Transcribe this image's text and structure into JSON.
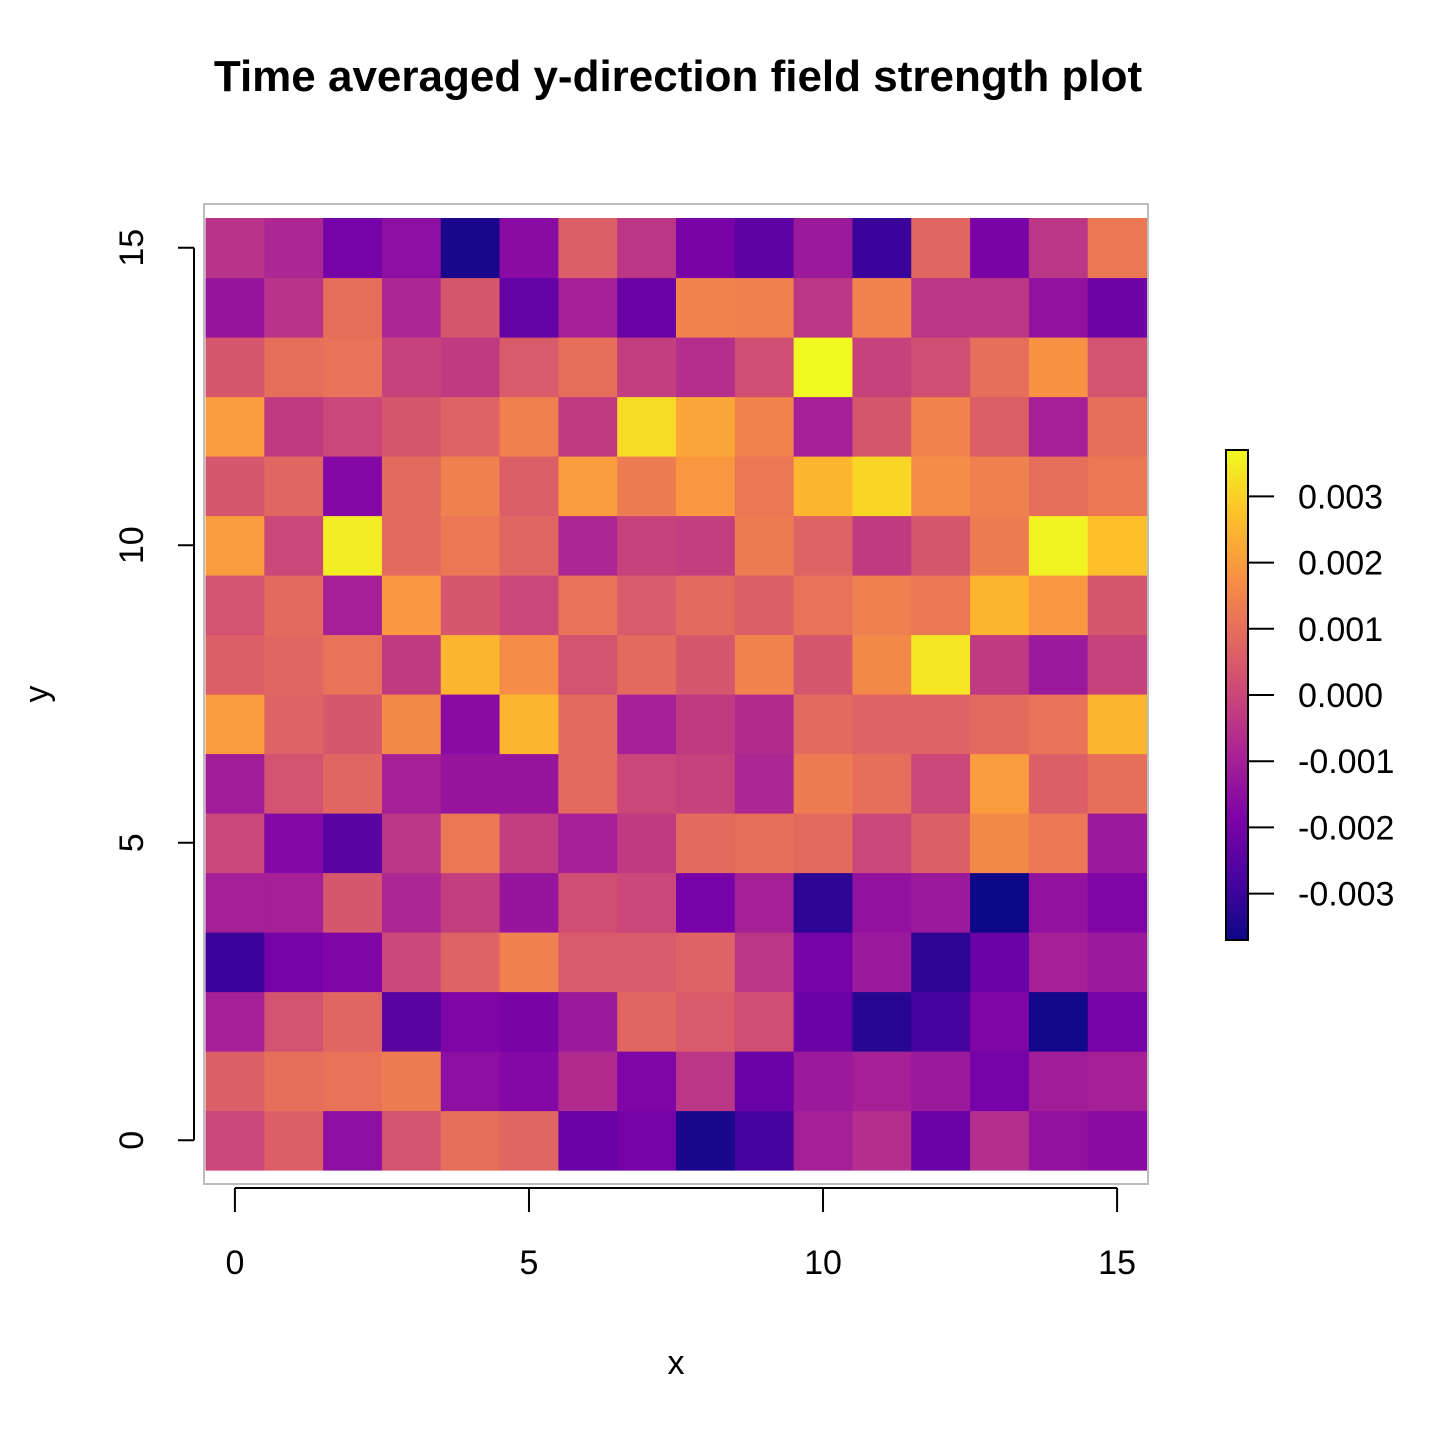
{
  "chart_data": {
    "type": "heatmap",
    "title": "Time averaged y-direction field strength plot",
    "xlabel": "x",
    "ylabel": "y",
    "x": [
      0,
      1,
      2,
      3,
      4,
      5,
      6,
      7,
      8,
      9,
      10,
      11,
      12,
      13,
      14,
      15
    ],
    "y": [
      0,
      1,
      2,
      3,
      4,
      5,
      6,
      7,
      8,
      9,
      10,
      11,
      12,
      13,
      14,
      15
    ],
    "xlim": [
      -0.5,
      15.5
    ],
    "ylim": [
      -0.5,
      15.5
    ],
    "x_ticks": [
      "0",
      "5",
      "10",
      "15"
    ],
    "y_ticks": [
      "0",
      "5",
      "10",
      "15"
    ],
    "colormap": "plasma",
    "color_range": [
      -0.0037,
      0.0037
    ],
    "colorbar_ticks": [
      "-0.003",
      "-0.002",
      "-0.001",
      "0.000",
      "0.001",
      "0.002",
      "0.003"
    ],
    "colorbar_tick_values": [
      -0.003,
      -0.002,
      -0.001,
      0.0,
      0.001,
      0.002,
      0.003
    ],
    "values_rows_from_y0": [
      [
        0.0,
        0.0006,
        -0.0015,
        0.0003,
        0.001,
        0.0008,
        -0.0022,
        -0.002,
        -0.0035,
        -0.0028,
        -0.001,
        -0.0006,
        -0.0022,
        -0.0006,
        -0.0014,
        -0.0016
      ],
      [
        0.0006,
        0.001,
        0.0011,
        0.0013,
        -0.0015,
        -0.0017,
        -0.0007,
        -0.0018,
        -0.0004,
        -0.0022,
        -0.0012,
        -0.001,
        -0.0012,
        -0.002,
        -0.0011,
        -0.001
      ],
      [
        -0.001,
        0.0003,
        0.0008,
        -0.0025,
        -0.0018,
        -0.0019,
        -0.0012,
        0.0008,
        0.0005,
        0.0002,
        -0.0022,
        -0.0033,
        -0.0028,
        -0.0018,
        -0.0036,
        -0.002
      ],
      [
        -0.003,
        -0.002,
        -0.0018,
        0.0,
        0.0007,
        0.0014,
        0.0005,
        0.0005,
        0.0007,
        -0.0004,
        -0.002,
        -0.0012,
        -0.0032,
        -0.0022,
        -0.001,
        -0.0012
      ],
      [
        -0.001,
        -0.001,
        0.0004,
        -0.0008,
        -0.0002,
        -0.0013,
        0.0002,
        0.0,
        -0.002,
        -0.001,
        -0.0032,
        -0.0014,
        -0.0012,
        -0.0037,
        -0.0014,
        -0.0018
      ],
      [
        0.0,
        -0.0017,
        -0.0025,
        -0.0004,
        0.0012,
        -0.0002,
        -0.001,
        -0.0003,
        0.0009,
        0.001,
        0.0009,
        0.0,
        0.0006,
        0.0016,
        0.0012,
        -0.0012
      ],
      [
        -0.0011,
        0.0003,
        0.0008,
        -0.001,
        -0.0013,
        -0.0013,
        0.0009,
        0.0,
        -0.0001,
        -0.0008,
        0.0013,
        0.001,
        0.0,
        0.002,
        0.0006,
        0.001
      ],
      [
        0.002,
        0.0007,
        0.0004,
        0.0016,
        -0.0016,
        0.0025,
        0.0009,
        -0.001,
        -0.0003,
        -0.0007,
        0.0009,
        0.0007,
        0.0007,
        0.0009,
        0.0011,
        0.0025
      ],
      [
        0.0006,
        0.0008,
        0.0011,
        -0.0003,
        0.0025,
        0.0017,
        0.0003,
        0.0009,
        0.0004,
        0.0015,
        0.0004,
        0.0016,
        0.0034,
        -0.0003,
        -0.0012,
        -0.0001
      ],
      [
        0.0003,
        0.0009,
        -0.001,
        0.0019,
        0.0004,
        0.0,
        0.0011,
        0.0005,
        0.0009,
        0.0006,
        0.0011,
        0.0014,
        0.0012,
        0.0025,
        0.0019,
        0.0004
      ],
      [
        0.002,
        0.0,
        0.0035,
        0.0009,
        0.0012,
        0.0008,
        -0.0008,
        -0.0001,
        -0.0002,
        0.0013,
        0.0007,
        -0.0003,
        0.0004,
        0.0013,
        0.0036,
        0.0027
      ],
      [
        0.0004,
        0.0008,
        -0.0017,
        0.0009,
        0.0014,
        0.0006,
        0.002,
        0.0013,
        0.0019,
        0.0012,
        0.0025,
        0.0031,
        0.0017,
        0.0014,
        0.001,
        0.0012
      ],
      [
        0.002,
        -0.0003,
        0.0,
        0.0004,
        0.0007,
        0.0014,
        -0.0003,
        0.0032,
        0.0022,
        0.0015,
        -0.001,
        0.0004,
        0.0015,
        0.0006,
        -0.001,
        0.001
      ],
      [
        0.0004,
        0.001,
        0.0011,
        -0.0001,
        -0.0003,
        0.0005,
        0.001,
        -0.0002,
        -0.0006,
        0.0002,
        0.0037,
        -0.0001,
        0.0002,
        0.001,
        0.0018,
        0.0003
      ],
      [
        -0.0013,
        -0.0005,
        0.001,
        -0.0008,
        0.0004,
        -0.0023,
        -0.001,
        -0.0022,
        0.0015,
        0.0014,
        -0.0004,
        0.0015,
        -0.0004,
        -0.0004,
        -0.0014,
        -0.0021
      ],
      [
        -0.0005,
        -0.0008,
        -0.002,
        -0.0015,
        -0.0035,
        -0.0016,
        0.0006,
        -0.0004,
        -0.0019,
        -0.0024,
        -0.0012,
        -0.003,
        0.0008,
        -0.0019,
        -0.0004,
        0.0012
      ]
    ]
  }
}
